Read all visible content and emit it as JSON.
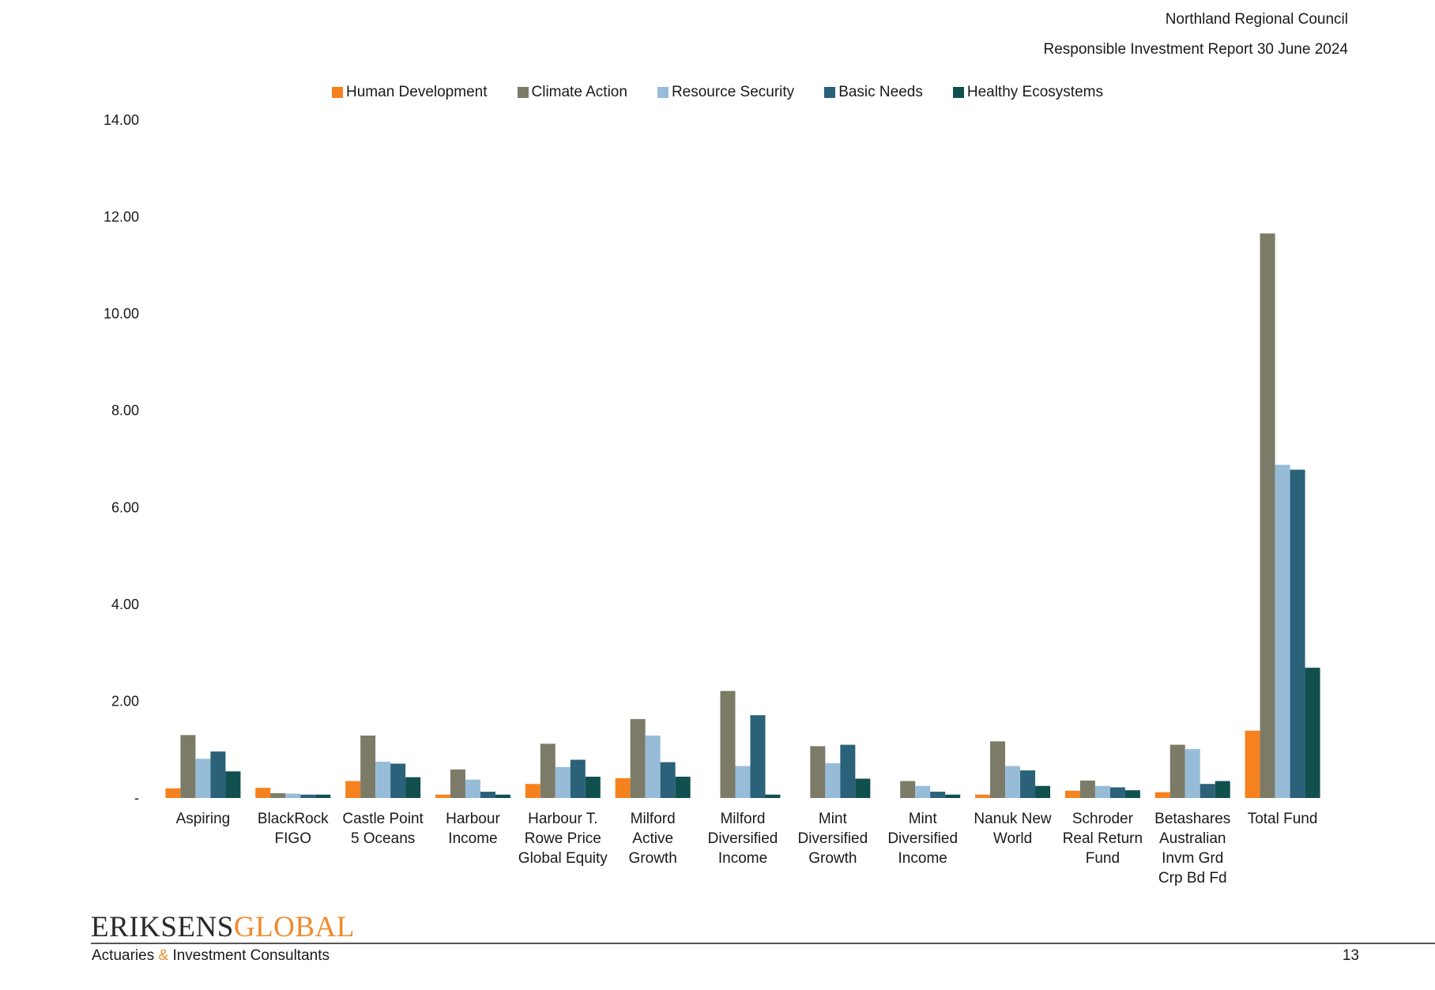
{
  "header": {
    "organization": "Northland Regional Council",
    "report_title": "Responsible Investment Report 30 June 2024"
  },
  "footer": {
    "logo_left": "ERIKSENS",
    "logo_right": "GLOBAL",
    "tagline_pre": "Actuaries ",
    "tagline_amp": "&",
    "tagline_post": " Investment Consultants",
    "page_number": "13"
  },
  "chart_data": {
    "type": "bar",
    "title": "",
    "xlabel": "",
    "ylabel": "",
    "ylim": [
      0,
      14
    ],
    "yticks": [
      {
        "value": 0,
        "label": "-"
      },
      {
        "value": 2,
        "label": "2.00"
      },
      {
        "value": 4,
        "label": "4.00"
      },
      {
        "value": 6,
        "label": "6.00"
      },
      {
        "value": 8,
        "label": "8.00"
      },
      {
        "value": 10,
        "label": "10.00"
      },
      {
        "value": 12,
        "label": "12.00"
      },
      {
        "value": 14,
        "label": "14.00"
      }
    ],
    "grid": false,
    "legend_position": "top-center",
    "categories": [
      [
        "Aspiring"
      ],
      [
        "BlackRock",
        "FIGO"
      ],
      [
        "Castle Point",
        "5 Oceans"
      ],
      [
        "Harbour",
        "Income"
      ],
      [
        "Harbour T.",
        "Rowe Price",
        "Global Equity"
      ],
      [
        "Milford",
        "Active",
        "Growth"
      ],
      [
        "Milford",
        "Diversified",
        "Income"
      ],
      [
        "Mint",
        "Diversified",
        "Growth"
      ],
      [
        "Mint",
        "Diversified",
        "Income"
      ],
      [
        "Nanuk New",
        "World"
      ],
      [
        "Schroder",
        "Real Return",
        "Fund"
      ],
      [
        "Betashares",
        "Australian",
        "Invm Grd",
        "Crp Bd Fd"
      ],
      [
        "Total Fund"
      ]
    ],
    "series": [
      {
        "name": "Human Development",
        "color": "#f5821f",
        "values": [
          0.2,
          0.21,
          0.35,
          0.07,
          0.29,
          0.41,
          0,
          0,
          0,
          0.07,
          0.15,
          0.12,
          1.39
        ]
      },
      {
        "name": "Climate Action",
        "color": "#7b7b68",
        "values": [
          1.3,
          0.1,
          1.29,
          0.59,
          1.12,
          1.63,
          2.21,
          1.07,
          0.35,
          1.17,
          0.36,
          1.1,
          11.66
        ]
      },
      {
        "name": "Resource Security",
        "color": "#97bcd8",
        "values": [
          0.81,
          0.09,
          0.75,
          0.38,
          0.64,
          1.29,
          0.66,
          0.72,
          0.25,
          0.66,
          0.25,
          1.01,
          6.88
        ]
      },
      {
        "name": "Basic Needs",
        "color": "#2b6179",
        "values": [
          0.96,
          0.07,
          0.71,
          0.13,
          0.79,
          0.74,
          1.71,
          1.1,
          0.13,
          0.57,
          0.22,
          0.29,
          6.78
        ]
      },
      {
        "name": "Healthy Ecosystems",
        "color": "#10504f",
        "values": [
          0.55,
          0.07,
          0.43,
          0.07,
          0.44,
          0.44,
          0.07,
          0.4,
          0.07,
          0.25,
          0.16,
          0.35,
          2.69
        ]
      }
    ]
  }
}
